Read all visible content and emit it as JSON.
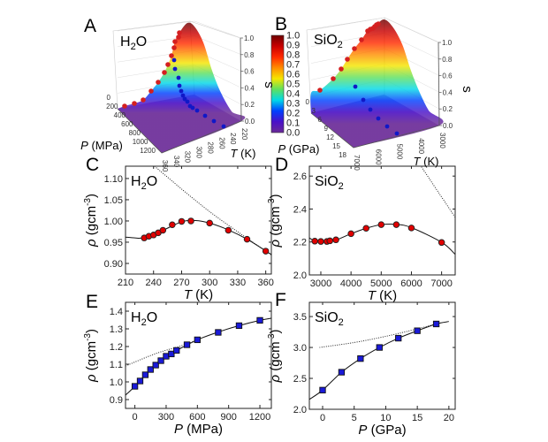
{
  "panels": {
    "A": "A",
    "B": "B",
    "C": "C",
    "D": "D",
    "E": "E",
    "F": "F"
  },
  "colorbar": {
    "ticks": [
      "1.0",
      "0.9",
      "0.8",
      "0.7",
      "0.6",
      "0.5",
      "0.4",
      "0.3",
      "0.2",
      "0.1",
      "0.0"
    ],
    "colors": [
      "#6e0000",
      "#c80000",
      "#ff2a00",
      "#ff8c00",
      "#f5e600",
      "#5ee05e",
      "#00d8e8",
      "#0040ff",
      "#4a10c8",
      "#6a2a96"
    ]
  },
  "chart_data": [
    {
      "panel": "A",
      "type": "surface3d",
      "compound": {
        "base": "H",
        "sub": "2",
        "rest": "O"
      },
      "xlabel": {
        "symbol": "P",
        "unit": " (MPa)"
      },
      "ylabel": {
        "symbol": "T",
        "unit": " (K)"
      },
      "zlabel": "s",
      "xticks": [
        "0",
        "200",
        "400",
        "600",
        "800",
        "1000",
        "1200"
      ],
      "yticks": [
        "220",
        "240",
        "260",
        "280",
        "300",
        "320",
        "340",
        "360"
      ],
      "zticks": [
        "0.0",
        "0.2",
        "0.4",
        "0.6",
        "0.8",
        "1.0"
      ],
      "zlim": [
        0,
        1
      ],
      "series_colors": {
        "surface_edge_points": "#d42020",
        "projection_points": "#1018c8"
      }
    },
    {
      "panel": "B",
      "type": "surface3d",
      "compound": {
        "base": "SiO",
        "sub": "2",
        "rest": ""
      },
      "xlabel": {
        "symbol": "P",
        "unit": " (GPa)"
      },
      "ylabel": {
        "symbol": "T",
        "unit": " (K)"
      },
      "zlabel": "s",
      "xticks": [
        "0",
        "3",
        "6",
        "9",
        "12",
        "15",
        "18"
      ],
      "yticks": [
        "3000",
        "4000",
        "5000",
        "6000",
        "7000"
      ],
      "zticks": [
        "0.0",
        "0.2",
        "0.4",
        "0.6",
        "0.8",
        "1.0"
      ],
      "zlim": [
        0,
        1
      ],
      "series_colors": {
        "surface_edge_points": "#d42020",
        "projection_points": "#1018c8"
      }
    },
    {
      "panel": "C",
      "type": "scatter",
      "compound": {
        "base": "H",
        "sub": "2",
        "rest": "O"
      },
      "xlabel": {
        "symbol": "T",
        "unit": " (K)"
      },
      "ylabel": {
        "symbol": "ρ",
        "unit": " (gcm",
        "sup": "-3",
        "close": ")"
      },
      "xlim": [
        210,
        366
      ],
      "ylim": [
        0.875,
        1.129
      ],
      "xticks": [
        "210",
        "240",
        "270",
        "300",
        "330",
        "360"
      ],
      "yticks": [
        "0.90",
        "0.95",
        "1.00",
        "1.05",
        "1.10"
      ],
      "marker": "circle",
      "marker_color": "#e00000",
      "points": [
        [
          230,
          0.96
        ],
        [
          235,
          0.964
        ],
        [
          240,
          0.967
        ],
        [
          245,
          0.972
        ],
        [
          250,
          0.978
        ],
        [
          260,
          0.991
        ],
        [
          270,
          0.999
        ],
        [
          280,
          1.0
        ],
        [
          300,
          0.995
        ],
        [
          320,
          0.978
        ],
        [
          340,
          0.957
        ],
        [
          360,
          0.929
        ]
      ],
      "fit_curve": [
        [
          210,
          0.962
        ],
        [
          220,
          0.96
        ],
        [
          230,
          0.961
        ],
        [
          250,
          0.978
        ],
        [
          270,
          0.998
        ],
        [
          285,
          1.001
        ],
        [
          300,
          0.995
        ],
        [
          320,
          0.979
        ],
        [
          340,
          0.957
        ],
        [
          366,
          0.921
        ]
      ],
      "dotted_curve": [
        [
          241,
          1.129
        ],
        [
          300,
          1.022
        ],
        [
          366,
          0.92
        ]
      ]
    },
    {
      "panel": "D",
      "type": "scatter",
      "compound": {
        "base": "SiO",
        "sub": "2",
        "rest": ""
      },
      "xlabel": {
        "symbol": "T",
        "unit": " (K)"
      },
      "ylabel": {
        "symbol": "ρ",
        "unit": " (gcm",
        "sup": "-3",
        "close": ")"
      },
      "xlim": [
        2620,
        7450
      ],
      "ylim": [
        2.0,
        2.66
      ],
      "xticks": [
        "3000",
        "4000",
        "5000",
        "6000",
        "7000"
      ],
      "yticks": [
        "2.0",
        "2.2",
        "2.4",
        "2.6"
      ],
      "marker": "circle",
      "marker_color": "#e00000",
      "points": [
        [
          2800,
          2.205
        ],
        [
          3000,
          2.203
        ],
        [
          3200,
          2.203
        ],
        [
          3300,
          2.207
        ],
        [
          3500,
          2.213
        ],
        [
          4000,
          2.25
        ],
        [
          4500,
          2.283
        ],
        [
          5000,
          2.305
        ],
        [
          5500,
          2.305
        ],
        [
          6000,
          2.285
        ],
        [
          7000,
          2.197
        ]
      ],
      "fit_curve": [
        [
          2620,
          2.225
        ],
        [
          2800,
          2.207
        ],
        [
          3200,
          2.203
        ],
        [
          3500,
          2.212
        ],
        [
          4000,
          2.25
        ],
        [
          4500,
          2.283
        ],
        [
          5000,
          2.305
        ],
        [
          5500,
          2.307
        ],
        [
          6000,
          2.287
        ],
        [
          7000,
          2.198
        ],
        [
          7450,
          2.125
        ]
      ],
      "dotted_curve": [
        [
          6333,
          2.656
        ],
        [
          6900,
          2.5
        ],
        [
          7450,
          2.35
        ]
      ]
    },
    {
      "panel": "E",
      "type": "scatter",
      "compound": {
        "base": "H",
        "sub": "2",
        "rest": "O"
      },
      "xlabel": {
        "symbol": "P",
        "unit": " (MPa)"
      },
      "ylabel": {
        "symbol": "ρ",
        "unit": " (gcm",
        "sup": "-3",
        "close": ")"
      },
      "xlim": [
        -90,
        1310
      ],
      "ylim": [
        0.85,
        1.45
      ],
      "xticks": [
        "0",
        "300",
        "600",
        "900",
        "1200"
      ],
      "yticks": [
        "0.9",
        "1.0",
        "1.1",
        "1.2",
        "1.3",
        "1.4"
      ],
      "marker": "square",
      "marker_color": "#1a1ad8",
      "points": [
        [
          0,
          0.975
        ],
        [
          50,
          1.005
        ],
        [
          100,
          1.04
        ],
        [
          150,
          1.07
        ],
        [
          200,
          1.095
        ],
        [
          250,
          1.12
        ],
        [
          300,
          1.145
        ],
        [
          350,
          1.158
        ],
        [
          400,
          1.178
        ],
        [
          500,
          1.21
        ],
        [
          600,
          1.238
        ],
        [
          800,
          1.28
        ],
        [
          1000,
          1.318
        ],
        [
          1200,
          1.348
        ]
      ],
      "fit_curve": [
        [
          -90,
          0.925
        ],
        [
          0,
          0.975
        ],
        [
          100,
          1.04
        ],
        [
          200,
          1.095
        ],
        [
          300,
          1.145
        ],
        [
          400,
          1.178
        ],
        [
          600,
          1.238
        ],
        [
          800,
          1.282
        ],
        [
          1000,
          1.318
        ],
        [
          1200,
          1.348
        ],
        [
          1310,
          1.36
        ]
      ],
      "dotted_curve": [
        [
          -90,
          1.09
        ],
        [
          200,
          1.16
        ],
        [
          450,
          1.205
        ],
        [
          600,
          1.237
        ]
      ]
    },
    {
      "panel": "F",
      "type": "scatter",
      "compound": {
        "base": "SiO",
        "sub": "2",
        "rest": ""
      },
      "xlabel": {
        "symbol": "P",
        "unit": " (GPa)"
      },
      "ylabel": {
        "symbol": "ρ",
        "unit": " (gcm",
        "sup": "-3",
        "close": ")"
      },
      "xlim": [
        -2.1,
        21
      ],
      "ylim": [
        2.0,
        3.73
      ],
      "xticks": [
        "0",
        "5",
        "10",
        "15",
        "20"
      ],
      "yticks": [
        "2.0",
        "2.5",
        "3.0",
        "3.5"
      ],
      "marker": "square",
      "marker_color": "#1a1ad8",
      "points": [
        [
          0,
          2.31
        ],
        [
          3,
          2.6
        ],
        [
          6,
          2.82
        ],
        [
          9,
          3.0
        ],
        [
          12,
          3.15
        ],
        [
          15,
          3.27
        ],
        [
          18,
          3.38
        ]
      ],
      "fit_curve": [
        [
          -2.1,
          2.16
        ],
        [
          0,
          2.31
        ],
        [
          3,
          2.6
        ],
        [
          6,
          2.82
        ],
        [
          9,
          3.0
        ],
        [
          12,
          3.15
        ],
        [
          15,
          3.27
        ],
        [
          18,
          3.38
        ],
        [
          20,
          3.42
        ]
      ],
      "dotted_curve": [
        [
          -0.5,
          3.0
        ],
        [
          5,
          3.08
        ],
        [
          10,
          3.18
        ],
        [
          15,
          3.3
        ],
        [
          18,
          3.38
        ]
      ]
    }
  ]
}
